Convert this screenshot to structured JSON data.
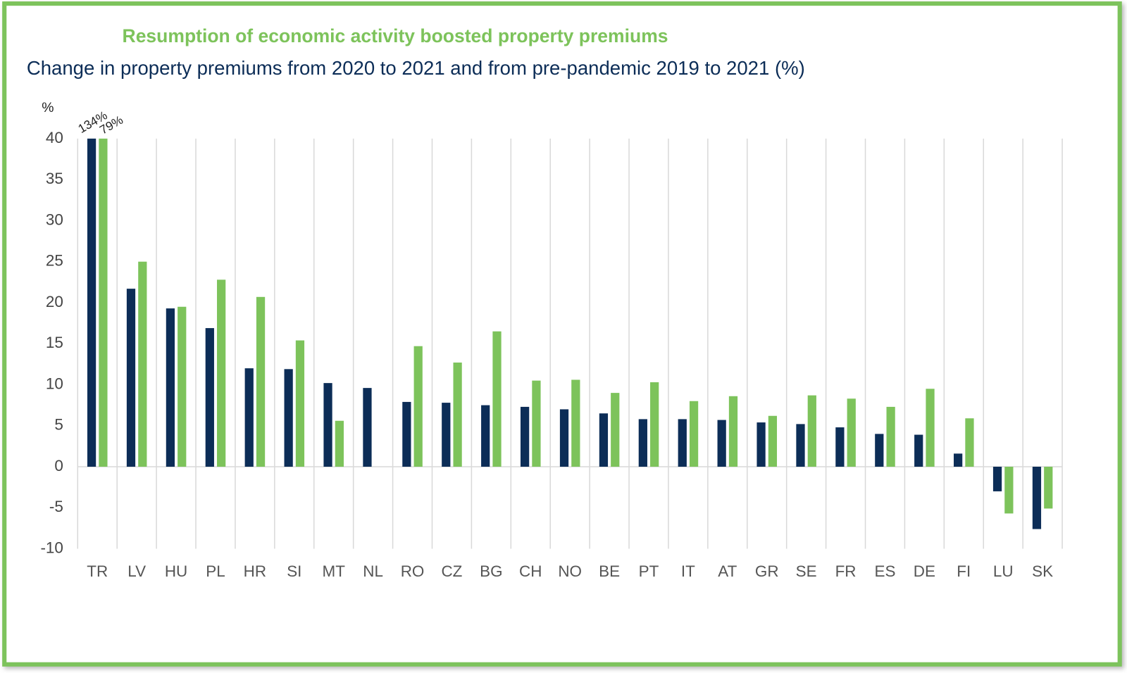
{
  "chart_data": {
    "type": "bar",
    "title": "Resumption of economic activity boosted property premiums",
    "subtitle": "Change in property premiums from 2020 to 2021 and from pre-pandemic 2019 to 2021 (%)",
    "y_label": "%",
    "categories": [
      "TR",
      "LV",
      "HU",
      "PL",
      "HR",
      "SI",
      "MT",
      "NL",
      "RO",
      "CZ",
      "BG",
      "CH",
      "NO",
      "BE",
      "PT",
      "IT",
      "AT",
      "GR",
      "SE",
      "FR",
      "ES",
      "DE",
      "FI",
      "LU",
      "SK"
    ],
    "series": [
      {
        "color": "#0c2d57",
        "values": [
          134,
          21.7,
          19.3,
          16.9,
          12.0,
          11.9,
          10.2,
          9.6,
          7.9,
          7.8,
          7.5,
          7.3,
          7.0,
          6.5,
          5.8,
          5.8,
          5.7,
          5.4,
          5.2,
          4.8,
          4.0,
          3.9,
          1.6,
          -3.0,
          -7.6
        ],
        "value_labels": [
          "134%",
          null,
          null,
          null,
          null,
          null,
          null,
          null,
          null,
          null,
          null,
          null,
          null,
          null,
          null,
          null,
          null,
          null,
          null,
          null,
          null,
          null,
          null,
          null,
          null
        ]
      },
      {
        "color": "#7dc35b",
        "values": [
          79,
          25.0,
          19.5,
          22.8,
          20.7,
          15.4,
          5.6,
          null,
          14.7,
          12.7,
          16.5,
          10.5,
          10.6,
          9.0,
          10.3,
          8.0,
          8.6,
          6.2,
          8.7,
          8.3,
          7.3,
          9.5,
          5.9,
          -5.7,
          -5.1
        ],
        "value_labels": [
          "79%",
          null,
          null,
          null,
          null,
          null,
          null,
          null,
          null,
          null,
          null,
          null,
          null,
          null,
          null,
          null,
          null,
          null,
          null,
          null,
          null,
          null,
          null,
          null,
          null
        ]
      }
    ],
    "ylim": [
      -10,
      40
    ],
    "yticks": [
      -10,
      -5,
      0,
      5,
      10,
      15,
      20,
      25,
      30,
      35,
      40
    ]
  }
}
